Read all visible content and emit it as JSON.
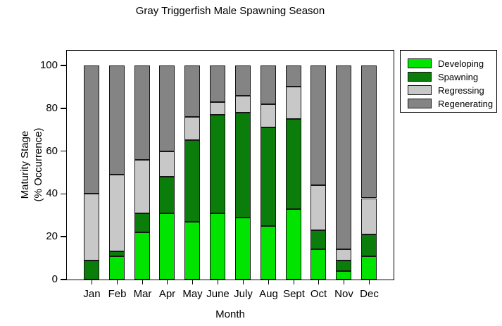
{
  "chart_data": {
    "type": "bar",
    "stacked": true,
    "title": "Gray Triggerfish Male Spawning Season",
    "xlabel": "Month",
    "ylabel_line1": "Maturity Stage",
    "ylabel_line2": "(% Occurrence)",
    "ylim": [
      0,
      100
    ],
    "yticks": [
      0,
      20,
      40,
      60,
      80,
      100
    ],
    "grid": false,
    "legend_position": "upper-right",
    "categories": [
      "Jan",
      "Feb",
      "Mar",
      "Apr",
      "May",
      "June",
      "July",
      "Aug",
      "Sept",
      "Oct",
      "Nov",
      "Dec"
    ],
    "series": [
      {
        "name": "Developing",
        "color": "#00e400",
        "values": [
          0,
          11,
          22,
          31,
          27,
          31,
          29,
          25,
          33,
          14,
          4,
          11
        ]
      },
      {
        "name": "Spawning",
        "color": "#0a7d0a",
        "values": [
          9,
          2,
          9,
          17,
          38,
          46,
          49,
          46,
          42,
          9,
          5,
          10
        ]
      },
      {
        "name": "Regressing",
        "color": "#c8c8c8",
        "values": [
          31,
          36,
          25,
          12,
          11,
          6,
          8,
          11,
          15,
          21,
          5,
          17
        ]
      },
      {
        "name": "Regenerating",
        "color": "#848484",
        "values": [
          60,
          51,
          44,
          40,
          24,
          17,
          14,
          18,
          10,
          56,
          86,
          62
        ]
      }
    ]
  }
}
